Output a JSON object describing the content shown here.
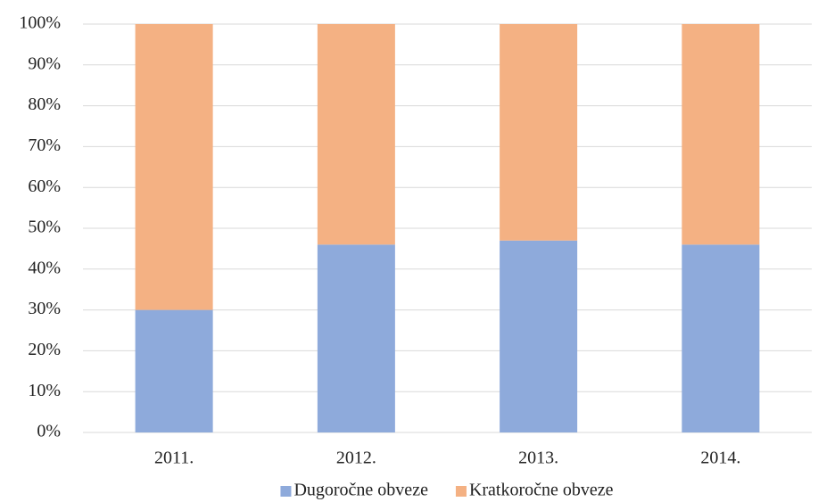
{
  "chart_data": {
    "type": "stacked-bar",
    "categories": [
      "2011.",
      "2012.",
      "2013.",
      "2014."
    ],
    "series": [
      {
        "name": "Dugoročne obveze",
        "color": "#8eaadb",
        "values": [
          30,
          46,
          47,
          46
        ]
      },
      {
        "name": "Kratkoročne obveze",
        "color": "#f4b183",
        "values": [
          70,
          54,
          53,
          54
        ]
      }
    ],
    "ylim": [
      0,
      100
    ],
    "yticks": [
      {
        "value": 0,
        "label": "0%"
      },
      {
        "value": 10,
        "label": "10%"
      },
      {
        "value": 20,
        "label": "20%"
      },
      {
        "value": 30,
        "label": "30%"
      },
      {
        "value": 40,
        "label": "40%"
      },
      {
        "value": 50,
        "label": "50%"
      },
      {
        "value": 60,
        "label": "60%"
      },
      {
        "value": 70,
        "label": "70%"
      },
      {
        "value": 80,
        "label": "80%"
      },
      {
        "value": 90,
        "label": "90%"
      },
      {
        "value": 100,
        "label": "100%"
      }
    ],
    "grid": true,
    "legend": "bottom"
  }
}
